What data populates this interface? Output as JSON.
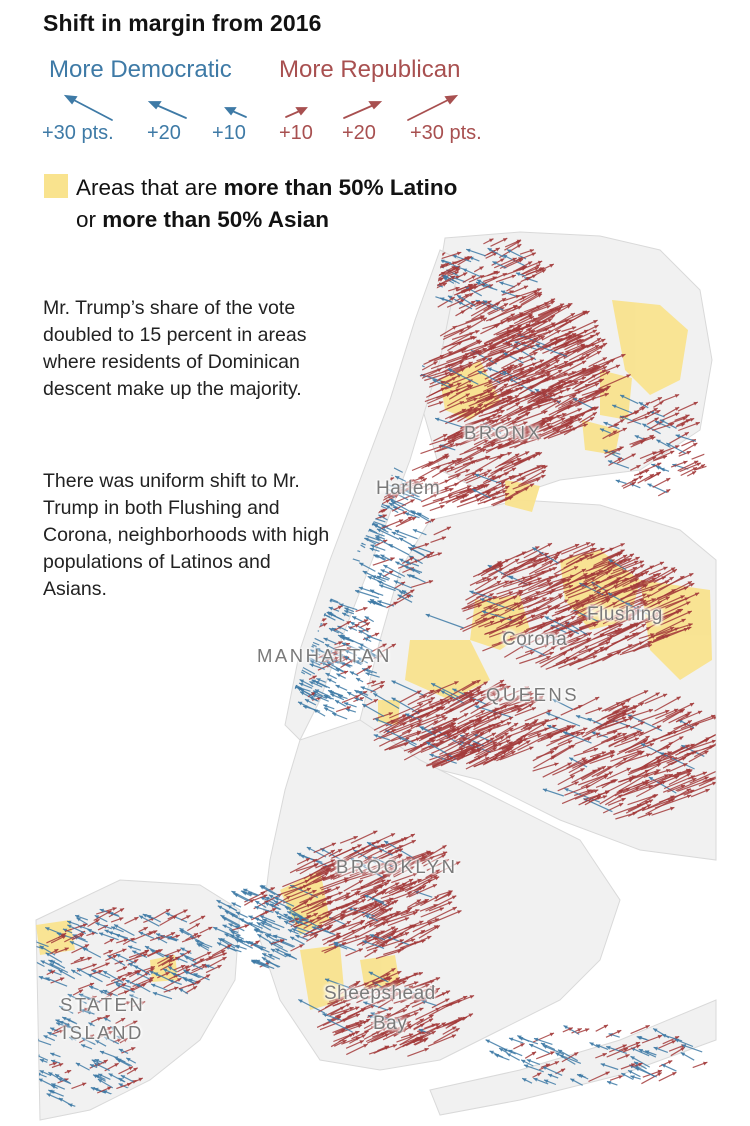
{
  "title": "Shift in margin from 2016",
  "legend": {
    "democratic_label": "More Democratic",
    "republican_label": "More Republican",
    "scale": [
      "+30 pts.",
      "+20",
      "+10",
      "+10",
      "+20",
      "+30 pts."
    ],
    "area_line1_prefix": "Areas that are ",
    "area_line1_bold": "more than 50% Latino",
    "area_line2_prefix": "or ",
    "area_line2_bold": "more than 50% Asian"
  },
  "annotations": [
    "Mr. Trump’s share of the vote doubled to 15 percent in areas where residents of Dominican descent make up the majority.",
    "There was uniform shift to Mr. Trump in both Flushing and Corona, neighborhoods with high populations of Latinos and Asians."
  ],
  "places": {
    "bronx": "BRONX",
    "harlem": "Harlem",
    "flushing": "Flushing",
    "corona": "Corona",
    "manhattan": "MANHATTAN",
    "queens": "QUEENS",
    "brooklyn": "BROOKLYN",
    "sheepshead": "Sheepshead",
    "bay": "Bay",
    "staten": "STATEN",
    "island": "ISLAND"
  },
  "colors": {
    "democratic": "#3e7aa6",
    "republican": "#a33b3b",
    "majority_area": "#f9e38e",
    "land": "#f1f1f1",
    "water": "#ffffff"
  }
}
